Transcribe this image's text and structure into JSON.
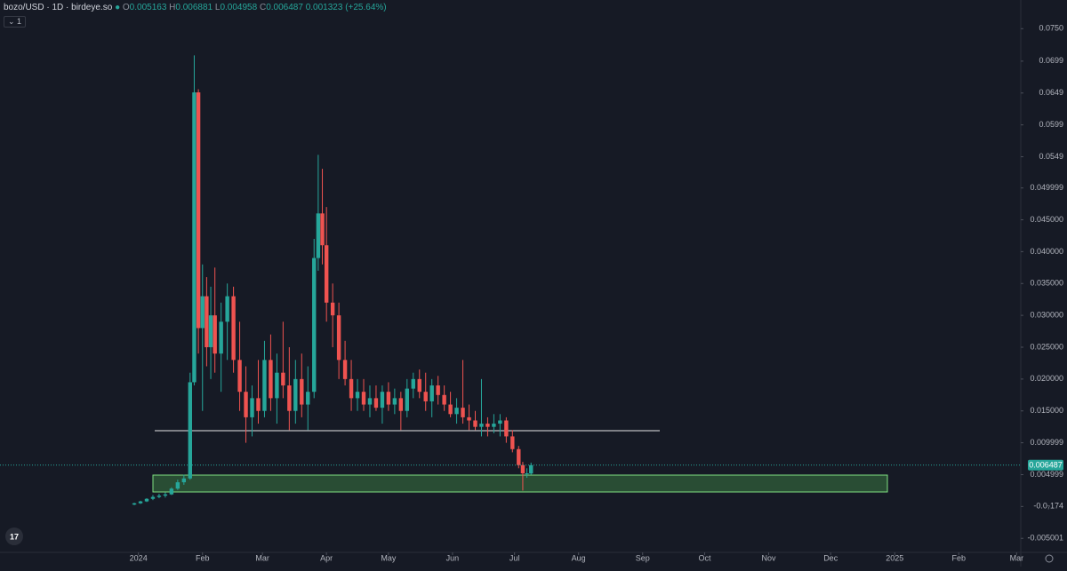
{
  "header": {
    "symbol": "bozo/USD · 1D · birdeye.so",
    "open_label": "O",
    "open": "0.005163",
    "high_label": "H",
    "high": "0.006881",
    "low_label": "L",
    "low": "0.004958",
    "close_label": "C",
    "close": "0.006487",
    "change": "0.001323 (+25.64%)",
    "interval": "1"
  },
  "chart_data": {
    "type": "candlestick",
    "up_color": "#26a69a",
    "down_color": "#ef5350",
    "last_price": 0.006487,
    "x": [
      -2,
      1,
      4,
      7,
      10,
      13,
      16,
      19,
      22,
      25,
      27,
      29,
      31,
      33,
      35,
      37,
      40,
      43,
      46,
      49,
      52,
      55,
      58,
      61,
      64,
      67,
      70,
      73,
      76,
      79,
      82,
      85,
      87,
      89,
      91,
      94,
      97,
      100,
      103,
      106,
      109,
      112,
      115,
      118,
      121,
      124,
      127,
      130,
      133,
      136,
      139,
      142,
      145,
      148,
      151,
      154,
      157,
      160,
      163,
      166,
      169,
      172,
      175,
      178,
      181,
      184,
      186,
      188,
      190
    ],
    "open": [
      0.0003,
      0.0005,
      0.0008,
      0.0012,
      0.0015,
      0.0017,
      0.0019,
      0.0028,
      0.0038,
      0.0044,
      0.0195,
      0.065,
      0.028,
      0.033,
      0.025,
      0.03,
      0.024,
      0.029,
      0.033,
      0.023,
      0.018,
      0.014,
      0.017,
      0.015,
      0.023,
      0.017,
      0.021,
      0.019,
      0.015,
      0.02,
      0.016,
      0.018,
      0.039,
      0.046,
      0.041,
      0.032,
      0.03,
      0.023,
      0.02,
      0.017,
      0.018,
      0.016,
      0.017,
      0.0155,
      0.018,
      0.016,
      0.017,
      0.015,
      0.0185,
      0.02,
      0.018,
      0.0165,
      0.019,
      0.0175,
      0.016,
      0.0145,
      0.0155,
      0.014,
      0.0135,
      0.0125,
      0.013,
      0.0125,
      0.013,
      0.0135,
      0.011,
      0.009,
      0.0065,
      0.0052,
      0.005163
    ],
    "high": [
      0.0006,
      0.0009,
      0.0013,
      0.0018,
      0.002,
      0.0022,
      0.003,
      0.0042,
      0.005,
      0.021,
      0.0708,
      0.0655,
      0.038,
      0.036,
      0.0345,
      0.0375,
      0.032,
      0.035,
      0.0345,
      0.029,
      0.022,
      0.019,
      0.023,
      0.026,
      0.027,
      0.024,
      0.029,
      0.025,
      0.023,
      0.024,
      0.022,
      0.042,
      0.0552,
      0.053,
      0.047,
      0.035,
      0.032,
      0.026,
      0.023,
      0.02,
      0.02,
      0.019,
      0.019,
      0.019,
      0.0195,
      0.0185,
      0.018,
      0.02,
      0.021,
      0.0215,
      0.021,
      0.02,
      0.0205,
      0.019,
      0.018,
      0.017,
      0.023,
      0.016,
      0.015,
      0.02,
      0.014,
      0.0145,
      0.0145,
      0.014,
      0.012,
      0.0095,
      0.007,
      0.006,
      0.006881
    ],
    "low": [
      0.0002,
      0.0004,
      0.0007,
      0.001,
      0.0013,
      0.0014,
      0.0018,
      0.0026,
      0.0034,
      0.0042,
      0.019,
      0.024,
      0.015,
      0.022,
      0.02,
      0.021,
      0.018,
      0.023,
      0.021,
      0.015,
      0.01,
      0.011,
      0.013,
      0.014,
      0.015,
      0.013,
      0.017,
      0.012,
      0.013,
      0.014,
      0.012,
      0.017,
      0.037,
      0.038,
      0.029,
      0.025,
      0.02,
      0.019,
      0.015,
      0.015,
      0.015,
      0.014,
      0.015,
      0.013,
      0.015,
      0.0145,
      0.012,
      0.014,
      0.017,
      0.017,
      0.015,
      0.014,
      0.016,
      0.015,
      0.014,
      0.013,
      0.013,
      0.012,
      0.012,
      0.011,
      0.011,
      0.0115,
      0.011,
      0.01,
      0.0085,
      0.006,
      0.0025,
      0.0045,
      0.004958
    ],
    "close": [
      0.0005,
      0.0008,
      0.0012,
      0.0015,
      0.0017,
      0.0019,
      0.0028,
      0.0038,
      0.0044,
      0.0195,
      0.065,
      0.028,
      0.033,
      0.025,
      0.03,
      0.024,
      0.029,
      0.033,
      0.023,
      0.018,
      0.014,
      0.017,
      0.015,
      0.023,
      0.017,
      0.021,
      0.019,
      0.015,
      0.02,
      0.016,
      0.018,
      0.039,
      0.046,
      0.041,
      0.032,
      0.03,
      0.023,
      0.02,
      0.017,
      0.018,
      0.016,
      0.017,
      0.0155,
      0.018,
      0.016,
      0.017,
      0.015,
      0.0185,
      0.02,
      0.018,
      0.0165,
      0.019,
      0.0175,
      0.016,
      0.0145,
      0.0155,
      0.014,
      0.0135,
      0.0125,
      0.013,
      0.0125,
      0.013,
      0.0135,
      0.011,
      0.009,
      0.0065,
      0.0052,
      0.0052,
      0.006487
    ],
    "xlim": [
      -67,
      427
    ],
    "xticks": [
      {
        "value": 0,
        "label": "2024"
      },
      {
        "value": 31,
        "label": "Feb"
      },
      {
        "value": 60,
        "label": "Mar"
      },
      {
        "value": 91,
        "label": "Apr"
      },
      {
        "value": 121,
        "label": "May"
      },
      {
        "value": 152,
        "label": "Jun"
      },
      {
        "value": 182,
        "label": "Jul"
      },
      {
        "value": 213,
        "label": "Aug"
      },
      {
        "value": 244,
        "label": "Sep"
      },
      {
        "value": 274,
        "label": "Oct"
      },
      {
        "value": 305,
        "label": "Nov"
      },
      {
        "value": 335,
        "label": "Dec"
      },
      {
        "value": 366,
        "label": "2025"
      },
      {
        "value": 397,
        "label": "Feb"
      },
      {
        "value": 425,
        "label": "Mar"
      }
    ],
    "ylim": [
      -0.0072,
      0.0795
    ],
    "yticks": [
      {
        "value": 0.075,
        "label": "0.0750"
      },
      0.0699,
      0.0649,
      0.0599,
      0.0549,
      0.049999,
      {
        "value": 0.045,
        "label": "0.045000"
      },
      {
        "value": 0.04,
        "label": "0.040000"
      },
      {
        "value": 0.035,
        "label": "0.035000"
      },
      {
        "value": 0.03,
        "label": "0.030000"
      },
      {
        "value": 0.025,
        "label": "0.025000"
      },
      {
        "value": 0.02,
        "label": "0.020000"
      },
      {
        "value": 0.015,
        "label": "0.015000"
      },
      0.009999,
      0.004999,
      {
        "value": -1.74e-08,
        "label": "-0.0₇174"
      },
      -0.005001
    ]
  }
}
